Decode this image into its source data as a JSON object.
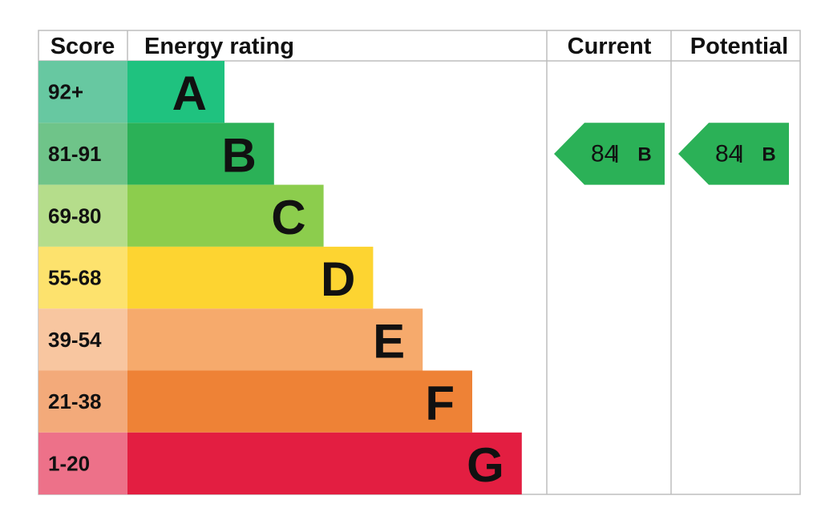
{
  "header": {
    "score": "Score",
    "rating": "Energy rating",
    "current": "Current",
    "potential": "Potential"
  },
  "bands": [
    {
      "score": "92+",
      "letter": "A",
      "color": "#1fc27f",
      "score_color": "#67c8a1"
    },
    {
      "score": "81-91",
      "letter": "B",
      "color": "#2bb157",
      "score_color": "#6fc489"
    },
    {
      "score": "69-80",
      "letter": "C",
      "color": "#8ccd4d",
      "score_color": "#b5dd8b"
    },
    {
      "score": "55-68",
      "letter": "D",
      "color": "#fdd431",
      "score_color": "#fde26d"
    },
    {
      "score": "39-54",
      "letter": "E",
      "color": "#f6aa6c",
      "score_color": "#f8c6a0"
    },
    {
      "score": "21-38",
      "letter": "F",
      "color": "#ee8236",
      "score_color": "#f3aa7a"
    },
    {
      "score": "1-20",
      "letter": "G",
      "color": "#e31e41",
      "score_color": "#ed7189"
    }
  ],
  "current": {
    "value": "84",
    "letter": "B"
  },
  "potential": {
    "value": "84",
    "letter": "B"
  }
}
